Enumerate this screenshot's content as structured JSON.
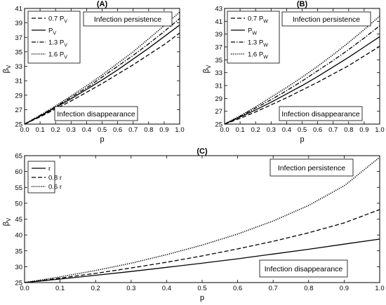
{
  "chart_data": [
    {
      "type": "line",
      "title": "(A)",
      "xlabel": "p",
      "ylabel": "βV",
      "xlim": [
        0,
        1
      ],
      "ylim": [
        25,
        41
      ],
      "x_ticks": [
        "0.0",
        "0.1",
        "0.2",
        "0.3",
        "0.4",
        "0.5",
        "0.6",
        "0.7",
        "0.8",
        "0.9",
        "1.0"
      ],
      "y_ticks": [
        "25",
        "27",
        "29",
        "31",
        "33",
        "35",
        "37",
        "39",
        "41"
      ],
      "x": [
        0,
        0.1,
        0.2,
        0.3,
        0.4,
        0.5,
        0.6,
        0.7,
        0.8,
        0.9,
        1.0
      ],
      "series": [
        {
          "name": "0.7 PV",
          "dash": "dashed",
          "values": [
            25,
            26.0,
            27.1,
            28.2,
            29.4,
            30.6,
            31.9,
            33.2,
            34.6,
            36.0,
            37.6
          ]
        },
        {
          "name": "PV",
          "dash": "solid",
          "values": [
            25,
            26.1,
            27.3,
            28.5,
            29.8,
            31.1,
            32.5,
            34.0,
            35.5,
            37.1,
            38.7
          ]
        },
        {
          "name": "1.3 PV",
          "dash": "dashdot",
          "values": [
            25,
            26.2,
            27.4,
            28.7,
            30.0,
            31.5,
            33.0,
            34.5,
            36.1,
            37.8,
            39.6
          ]
        },
        {
          "name": "1.6 PV",
          "dash": "dotted",
          "values": [
            25,
            26.2,
            27.5,
            28.9,
            30.3,
            31.8,
            33.4,
            35.0,
            36.8,
            38.6,
            40.5
          ]
        }
      ],
      "annotations": [
        "Infection persistence",
        "Infection disappearance"
      ],
      "legend_position": "top-left",
      "grid": false
    },
    {
      "type": "line",
      "title": "(B)",
      "xlabel": "p",
      "ylabel": "βV",
      "xlim": [
        0,
        1
      ],
      "ylim": [
        25,
        43
      ],
      "x_ticks": [
        "0.0",
        "0.1",
        "0.2",
        "0.3",
        "0.4",
        "0.5",
        "0.6",
        "0.7",
        "0.8",
        "0.9",
        "1.0"
      ],
      "y_ticks": [
        "25",
        "27",
        "29",
        "31",
        "33",
        "35",
        "37",
        "39",
        "41",
        "43"
      ],
      "x": [
        0,
        0.1,
        0.2,
        0.3,
        0.4,
        0.5,
        0.6,
        0.7,
        0.8,
        0.9,
        1.0
      ],
      "series": [
        {
          "name": "0.7 PW",
          "dash": "dashed",
          "values": [
            25,
            25.9,
            26.9,
            28.0,
            29.1,
            30.3,
            31.5,
            32.8,
            34.1,
            35.6,
            37.1
          ]
        },
        {
          "name": "PW",
          "dash": "solid",
          "values": [
            25,
            26.1,
            27.2,
            28.4,
            29.7,
            31.0,
            32.4,
            33.9,
            35.4,
            37.0,
            38.6
          ]
        },
        {
          "name": "1.3 PW",
          "dash": "dashdot",
          "values": [
            25,
            26.2,
            27.5,
            28.8,
            30.2,
            31.7,
            33.3,
            34.9,
            36.6,
            38.4,
            40.3
          ]
        },
        {
          "name": "1.6 PW",
          "dash": "dotted",
          "values": [
            25,
            26.3,
            27.7,
            29.2,
            30.7,
            32.3,
            34.0,
            35.8,
            37.7,
            39.7,
            41.8
          ]
        }
      ],
      "annotations": [
        "Infection persistence",
        "Infection disappearance"
      ],
      "legend_position": "top-left",
      "grid": false
    },
    {
      "type": "line",
      "title": "(C)",
      "xlabel": "p",
      "ylabel": "βV",
      "xlim": [
        0,
        1
      ],
      "ylim": [
        25,
        65
      ],
      "x_ticks": [
        "0.0",
        "0.1",
        "0.2",
        "0.3",
        "0.4",
        "0.5",
        "0.6",
        "0.7",
        "0.8",
        "0.9",
        "1.0"
      ],
      "y_ticks": [
        "25",
        "30",
        "35",
        "40",
        "45",
        "50",
        "55",
        "60",
        "65"
      ],
      "x": [
        0,
        0.1,
        0.2,
        0.3,
        0.4,
        0.5,
        0.6,
        0.7,
        0.8,
        0.9,
        1.0
      ],
      "series": [
        {
          "name": "r",
          "dash": "solid",
          "values": [
            25,
            26.1,
            27.3,
            28.5,
            29.8,
            31.1,
            32.5,
            34.0,
            35.5,
            37.1,
            38.7
          ]
        },
        {
          "name": "0.8 r",
          "dash": "dashed",
          "values": [
            25,
            26.4,
            27.9,
            29.6,
            31.4,
            33.4,
            35.6,
            38.0,
            40.7,
            43.8,
            48.0
          ]
        },
        {
          "name": "0.6 r",
          "dash": "dotted",
          "values": [
            25,
            26.8,
            28.8,
            31.1,
            33.8,
            36.8,
            40.3,
            44.4,
            49.3,
            55.5,
            64.5
          ]
        }
      ],
      "annotations": [
        "Infection persistence",
        "Infection disappearance"
      ],
      "legend_position": "top-left",
      "grid": false
    }
  ]
}
